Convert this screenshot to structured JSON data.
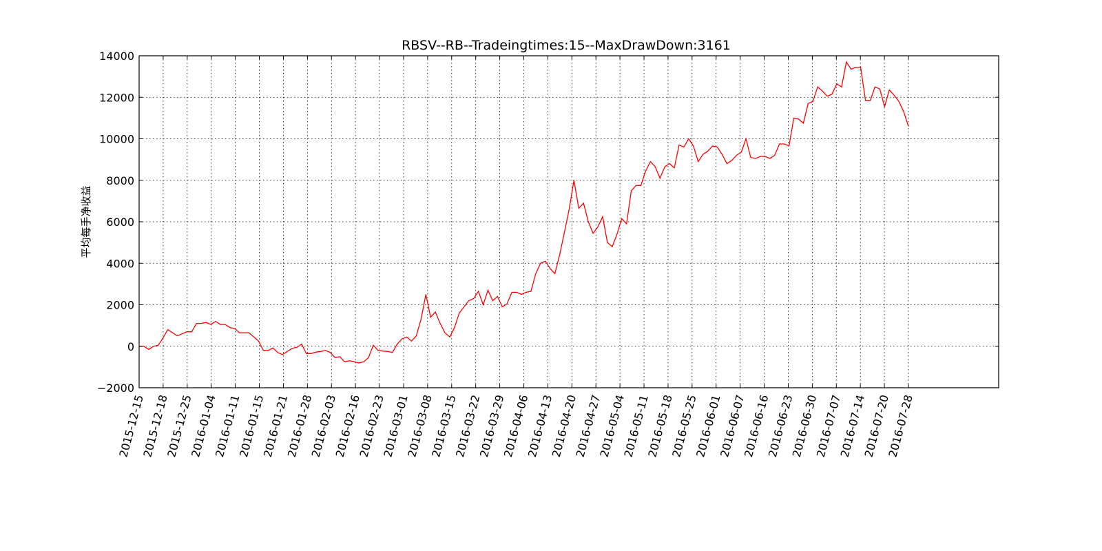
{
  "chart_data": {
    "type": "line",
    "title": "RBSV--RB--Tradeingtimes:15--MaxDrawDown:3161",
    "xlabel": "",
    "ylabel": "平均每手净收益",
    "ylim": [
      -2000,
      14000
    ],
    "yticks": [
      -2000,
      0,
      2000,
      4000,
      6000,
      8000,
      10000,
      12000,
      14000
    ],
    "ytick_labels": [
      "−2000",
      "0",
      "2000",
      "4000",
      "6000",
      "8000",
      "10000",
      "12000",
      "14000"
    ],
    "xticks": [
      "2015-12-15",
      "2015-12-18",
      "2015-12-25",
      "2016-01-04",
      "2016-01-11",
      "2016-01-15",
      "2016-01-21",
      "2016-01-28",
      "2016-02-03",
      "2016-02-16",
      "2016-02-23",
      "2016-03-01",
      "2016-03-08",
      "2016-03-15",
      "2016-03-22",
      "2016-03-29",
      "2016-04-06",
      "2016-04-13",
      "2016-04-20",
      "2016-04-27",
      "2016-05-04",
      "2016-05-11",
      "2016-05-18",
      "2016-05-25",
      "2016-06-01",
      "2016-06-07",
      "2016-06-16",
      "2016-06-23",
      "2016-06-30",
      "2016-07-07",
      "2016-07-14",
      "2016-07-20",
      "2016-07-28"
    ],
    "grid": true,
    "line_color": "#ff0000",
    "series": [
      {
        "values": [
          0,
          0,
          -150,
          0,
          50,
          400,
          800,
          650,
          500,
          600,
          700,
          700,
          1100,
          1100,
          1150,
          1050,
          1200,
          1050,
          1050,
          900,
          850,
          650,
          650,
          650,
          450,
          250,
          -200,
          -200,
          -80,
          -300,
          -400,
          -250,
          -100,
          -50,
          100,
          -350,
          -350,
          -280,
          -250,
          -200,
          -300,
          -550,
          -500,
          -750,
          -700,
          -750,
          -800,
          -750,
          -550,
          50,
          -200,
          -230,
          -250,
          -300,
          100,
          350,
          450,
          250,
          500,
          1300,
          2500,
          1400,
          1650,
          1100,
          650,
          450,
          900,
          1600,
          1900,
          2200,
          2300,
          2650,
          2000,
          2700,
          2200,
          2400,
          1900,
          2050,
          2600,
          2600,
          2500,
          2600,
          2650,
          3500,
          4000,
          4100,
          3750,
          3500,
          4400,
          5500,
          6600,
          8000,
          6650,
          6900,
          6000,
          5450,
          5750,
          6250,
          5000,
          4800,
          5400,
          6150,
          5900,
          7500,
          7750,
          7750,
          8450,
          8900,
          8650,
          8100,
          8650,
          8800,
          8600,
          9700,
          9600,
          10000,
          9650,
          8900,
          9250,
          9400,
          9650,
          9600,
          9250,
          8800,
          8950,
          9200,
          9350,
          10000,
          9100,
          9050,
          9150,
          9150,
          9050,
          9200,
          9750,
          9750,
          9650,
          11000,
          10950,
          10750,
          11700,
          11800,
          12500,
          12300,
          12050,
          12150,
          12650,
          12500,
          13700,
          13350,
          13450,
          13450,
          11850,
          11850,
          12500,
          12400,
          11550,
          12350,
          12100,
          11800,
          11300,
          10600
        ]
      }
    ]
  }
}
